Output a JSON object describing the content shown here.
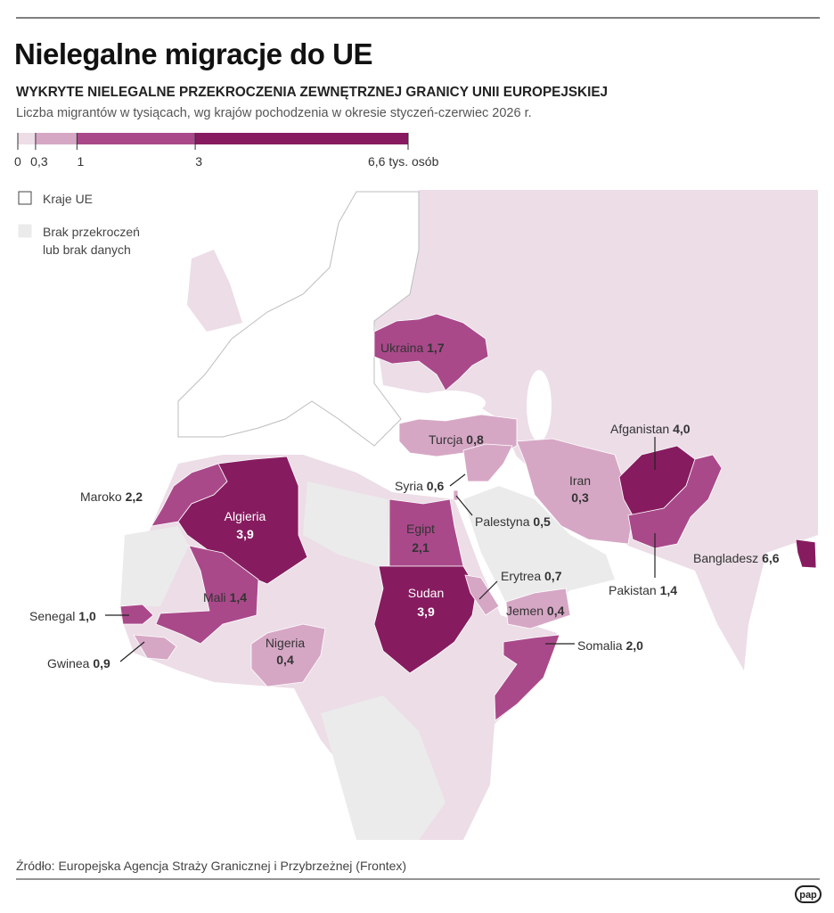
{
  "title": "Nielegalne migracje do UE",
  "subtitle": "WYKRYTE NIELEGALNE PRZEKROCZENIA ZEWNĘTRZNEJ GRANICY UNII EUROPEJSKIEJ",
  "description": "Liczba migrantów w tysiącach, wg krajów pochodzenia w okresie styczeń-czerwiec 2026 r.",
  "legend": {
    "breaks": [
      {
        "value": 0,
        "label": "0"
      },
      {
        "value": 0.3,
        "label": "0,3"
      },
      {
        "value": 1,
        "label": "1"
      },
      {
        "value": 3,
        "label": "3"
      },
      {
        "value": 6.6,
        "label": "6,6 tys. osób"
      }
    ],
    "colors": [
      "#ecdde7",
      "#d6a7c5",
      "#a9498a",
      "#861c5f"
    ]
  },
  "legend_items": [
    {
      "label": "Kraje UE",
      "color": "#ffffff"
    },
    {
      "lines": [
        "Brak przekroczeń",
        "lub brak danych"
      ],
      "color": "#ebebeb"
    }
  ],
  "countries": [
    {
      "name": "Ukraina",
      "value": 1.7,
      "value_label": "1,7"
    },
    {
      "name": "Turcja",
      "value": 0.8,
      "value_label": "0,8"
    },
    {
      "name": "Maroko",
      "value": 2.2,
      "value_label": "2,2"
    },
    {
      "name": "Algieria",
      "value": 3.9,
      "value_label": "3,9"
    },
    {
      "name": "Syria",
      "value": 0.6,
      "value_label": "0,6"
    },
    {
      "name": "Palestyna",
      "value": 0.5,
      "value_label": "0,5"
    },
    {
      "name": "Egipt",
      "value": 2.1,
      "value_label": "2,1"
    },
    {
      "name": "Sudan",
      "value": 3.9,
      "value_label": "3,9"
    },
    {
      "name": "Erytrea",
      "value": 0.7,
      "value_label": "0,7"
    },
    {
      "name": "Jemen",
      "value": 0.4,
      "value_label": "0,4"
    },
    {
      "name": "Somalia",
      "value": 2.0,
      "value_label": "2,0"
    },
    {
      "name": "Iran",
      "value": 0.3,
      "value_label": "0,3"
    },
    {
      "name": "Afganistan",
      "value": 4.0,
      "value_label": "4,0"
    },
    {
      "name": "Pakistan",
      "value": 1.4,
      "value_label": "1,4"
    },
    {
      "name": "Bangladesz",
      "value": 6.6,
      "value_label": "6,6"
    },
    {
      "name": "Mali",
      "value": 1.4,
      "value_label": "1,4"
    },
    {
      "name": "Senegal",
      "value": 1.0,
      "value_label": "1,0"
    },
    {
      "name": "Gwinea",
      "value": 0.9,
      "value_label": "0,9"
    },
    {
      "name": "Nigeria",
      "value": 0.4,
      "value_label": "0,4"
    }
  ],
  "source": "Źródło: Europejska Agencja Straży Granicznej i Przybrzeżnej (Frontex)",
  "logo": "pap"
}
